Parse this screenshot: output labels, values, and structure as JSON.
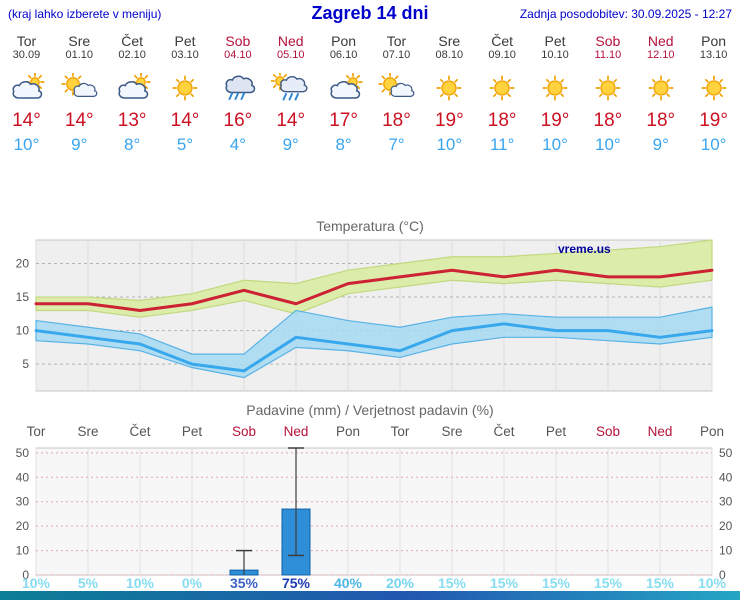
{
  "header": {
    "left_note": "(kraj lahko izberete v meniju)",
    "title": "Zagreb 14 dni",
    "last_update": "Zadnja posodobitev: 30.09.2025 - 12:27"
  },
  "colors": {
    "header_text": "#0000cc",
    "tmax_text": "#cc1122",
    "tmin_text": "#3aa5ef",
    "weekend_text": "#b5123b",
    "weekday_text": "#3a3a3a",
    "bar_blue": "#2e8fd8"
  },
  "forecast": {
    "days": [
      {
        "name": "Tor",
        "date": "30.09",
        "weekend": false,
        "icon": "cloud-sun",
        "tmax": "14°",
        "tmin": "10°"
      },
      {
        "name": "Sre",
        "date": "01.10",
        "weekend": false,
        "icon": "sun-cloud",
        "tmax": "14°",
        "tmin": "9°"
      },
      {
        "name": "Čet",
        "date": "02.10",
        "weekend": false,
        "icon": "cloud-sun",
        "tmax": "13°",
        "tmin": "8°"
      },
      {
        "name": "Pet",
        "date": "03.10",
        "weekend": false,
        "icon": "sun",
        "tmax": "14°",
        "tmin": "5°"
      },
      {
        "name": "Sob",
        "date": "04.10",
        "weekend": true,
        "icon": "rain",
        "tmax": "16°",
        "tmin": "4°"
      },
      {
        "name": "Ned",
        "date": "05.10",
        "weekend": true,
        "icon": "rain-sun",
        "tmax": "14°",
        "tmin": "9°"
      },
      {
        "name": "Pon",
        "date": "06.10",
        "weekend": false,
        "icon": "cloud-sun",
        "tmax": "17°",
        "tmin": "8°"
      },
      {
        "name": "Tor",
        "date": "07.10",
        "weekend": false,
        "icon": "sun-cloud",
        "tmax": "18°",
        "tmin": "7°"
      },
      {
        "name": "Sre",
        "date": "08.10",
        "weekend": false,
        "icon": "sun",
        "tmax": "19°",
        "tmin": "10°"
      },
      {
        "name": "Čet",
        "date": "09.10",
        "weekend": false,
        "icon": "sun",
        "tmax": "18°",
        "tmin": "11°"
      },
      {
        "name": "Pet",
        "date": "10.10",
        "weekend": false,
        "icon": "sun",
        "tmax": "19°",
        "tmin": "10°"
      },
      {
        "name": "Sob",
        "date": "11.10",
        "weekend": true,
        "icon": "sun",
        "tmax": "18°",
        "tmin": "10°"
      },
      {
        "name": "Ned",
        "date": "12.10",
        "weekend": true,
        "icon": "sun",
        "tmax": "18°",
        "tmin": "9°"
      },
      {
        "name": "Pon",
        "date": "13.10",
        "weekend": false,
        "icon": "sun",
        "tmax": "19°",
        "tmin": "10°"
      }
    ]
  },
  "chart_data": [
    {
      "type": "line",
      "title": "Temperatura (°C)",
      "x_labels": [
        "Tor",
        "Sre",
        "Čet",
        "Pet",
        "Sob",
        "Ned",
        "Pon",
        "Tor",
        "Sre",
        "Čet",
        "Pet",
        "Sob",
        "Ned",
        "Pon"
      ],
      "ylim": [
        1,
        23.5
      ],
      "yticks": [
        5,
        10,
        15,
        20
      ],
      "grid": true,
      "legend_position": "none",
      "watermark": "vreme.us",
      "series": [
        {
          "name": "max-temperature",
          "color": "#cc2233",
          "values": [
            14,
            14,
            13,
            14,
            16,
            14,
            17,
            18,
            19,
            18,
            19,
            18,
            18,
            19
          ]
        },
        {
          "name": "min-temperature",
          "color": "#38a8ec",
          "values": [
            10,
            9,
            8,
            5,
            4,
            9,
            8,
            7,
            10,
            11,
            10,
            10,
            9,
            10
          ]
        }
      ],
      "bands": [
        {
          "name": "max-temperature-range",
          "color": "#dcecaa",
          "edge": "#c2d87e",
          "hi": [
            15,
            15,
            14.5,
            15.5,
            17.5,
            17,
            19,
            20,
            21,
            21,
            21.5,
            22,
            22.5,
            23.5
          ],
          "lo": [
            13,
            13,
            12,
            13,
            14.5,
            12.5,
            15.5,
            16.5,
            17.5,
            17,
            17.5,
            17,
            16.5,
            17.5
          ]
        },
        {
          "name": "min-temperature-range",
          "color": "#a6d9f2",
          "edge": "#58b2e6",
          "hi": [
            11.5,
            10.5,
            9.5,
            6.5,
            6.5,
            13,
            11.5,
            10.5,
            12,
            12.5,
            12,
            12,
            12,
            13.5
          ],
          "lo": [
            8.5,
            8,
            7,
            4.5,
            3,
            7.5,
            7,
            6,
            8,
            9,
            9,
            8.5,
            8,
            9
          ]
        }
      ]
    },
    {
      "type": "bar",
      "title": "Padavine (mm) / Verjetnost padavin (%)",
      "x_labels": [
        "Tor",
        "Sre",
        "Čet",
        "Pet",
        "Sob",
        "Ned",
        "Pon",
        "Tor",
        "Sre",
        "Čet",
        "Pet",
        "Sob",
        "Ned",
        "Pon"
      ],
      "weekend": [
        false,
        false,
        false,
        false,
        true,
        true,
        false,
        false,
        false,
        false,
        false,
        true,
        true,
        false
      ],
      "ylim": [
        0,
        52
      ],
      "yticks": [
        0,
        10,
        20,
        30,
        40,
        50
      ],
      "bar_color": "#2e8fd8",
      "values_mm": [
        0,
        0,
        0,
        0,
        2,
        27,
        0,
        0,
        0,
        0,
        0,
        0,
        0,
        0
      ],
      "whiskers": [
        {
          "index": 4,
          "lo": 0,
          "hi": 10
        },
        {
          "index": 5,
          "lo": 8,
          "hi": 52
        }
      ],
      "probabilities": [
        {
          "label": "10%",
          "color": "#86dcf0"
        },
        {
          "label": "5%",
          "color": "#86dcf0"
        },
        {
          "label": "10%",
          "color": "#86dcf0"
        },
        {
          "label": "0%",
          "color": "#86dcf0"
        },
        {
          "label": "35%",
          "color": "#3b62c4"
        },
        {
          "label": "75%",
          "color": "#1c3cb2"
        },
        {
          "label": "40%",
          "color": "#4cb6e6"
        },
        {
          "label": "20%",
          "color": "#74d4ee"
        },
        {
          "label": "15%",
          "color": "#86dcf0"
        },
        {
          "label": "15%",
          "color": "#86dcf0"
        },
        {
          "label": "15%",
          "color": "#86dcf0"
        },
        {
          "label": "15%",
          "color": "#86dcf0"
        },
        {
          "label": "15%",
          "color": "#86dcf0"
        },
        {
          "label": "10%",
          "color": "#86dcf0"
        }
      ]
    }
  ]
}
